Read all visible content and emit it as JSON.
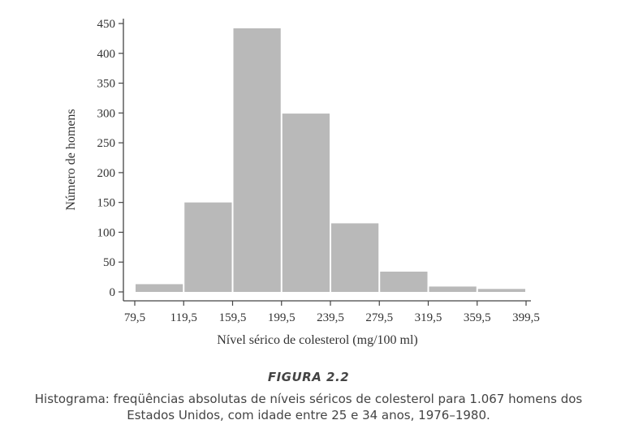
{
  "chart_data": {
    "type": "bar",
    "xlabel": "Nível sérico de colesterol (mg/100 ml)",
    "ylabel": "Número de homens",
    "bin_edges": [
      79.5,
      119.5,
      159.5,
      199.5,
      239.5,
      279.5,
      319.5,
      359.5,
      399.5
    ],
    "x_tick_labels": [
      "79,5",
      "119,5",
      "159,5",
      "199,5",
      "239,5",
      "279,5",
      "319,5",
      "359,5",
      "399,5"
    ],
    "values": [
      13,
      150,
      442,
      299,
      115,
      34,
      9,
      5
    ],
    "ylim": [
      0,
      450
    ],
    "y_ticks": [
      0,
      50,
      100,
      150,
      200,
      250,
      300,
      350,
      400,
      450
    ],
    "bar_color": "#b9b9b9",
    "axis_color": "#444444"
  },
  "caption": {
    "label": "FIGURA 2.2",
    "line1": "Histograma: freqüências absolutas de níveis séricos de colesterol para 1.067 homens dos",
    "line2": "Estados Unidos, com idade entre 25 e 34 anos, 1976–1980."
  }
}
